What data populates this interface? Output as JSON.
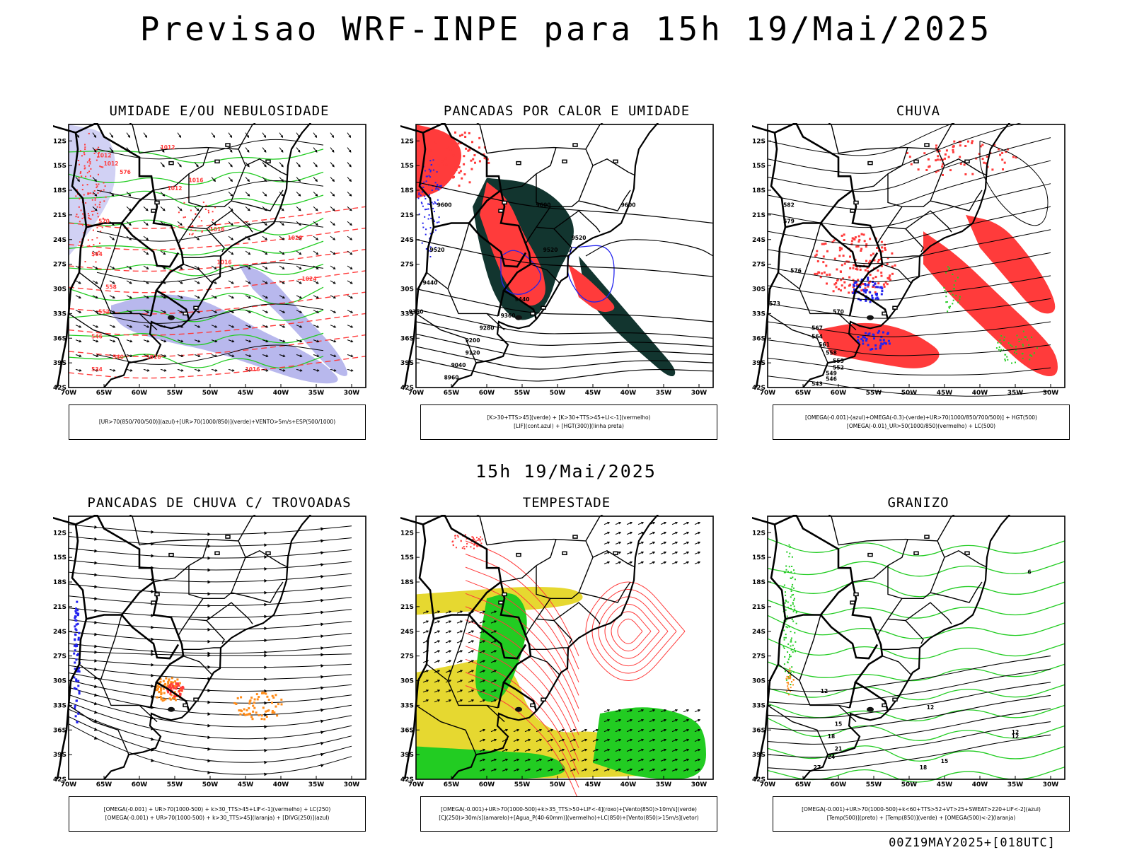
{
  "title": "Previsao WRF-INPE  para 15h 19/Mai/2025",
  "mid_date": "15h 19/Mai/2025",
  "footer_stamp": "00Z19MAY2025+[018UTC]",
  "lat_labels": [
    "12S",
    "15S",
    "18S",
    "21S",
    "24S",
    "27S",
    "30S",
    "33S",
    "36S",
    "39S",
    "42S"
  ],
  "lon_labels": [
    "70W",
    "65W",
    "60W",
    "55W",
    "50W",
    "45W",
    "40W",
    "35W",
    "30W"
  ],
  "colors": {
    "blue": "#2222ee",
    "green": "#22cc22",
    "red": "#ff3b3b",
    "orange": "#ff8c1a",
    "yellow": "#e6d830",
    "dark": "#12352f",
    "lavender": "#9a9ae6",
    "black": "#000000"
  },
  "panels": [
    {
      "id": "umidade",
      "title": "UMIDADE E/OU NEBULOSIDADE",
      "legend": [
        "[UR>70(850/700/500)](azul)+[UR>70(1000/850)](verde)+VENTO>5m/s+ESP(500/1000)"
      ],
      "labels": [
        "1012",
        "1012",
        "1016",
        "1016",
        "1016",
        "1020",
        "1024",
        "1016",
        "1016",
        "1012",
        "1012",
        "576",
        "570",
        "564",
        "558",
        "552",
        "546",
        "540",
        "534"
      ]
    },
    {
      "id": "pancadas",
      "title": "PANCADAS POR CALOR E UMIDADE",
      "legend": [
        "[K>30+TTS>45](verde) + [K>30+TTS>45+LI<-1](vermelho)",
        "[LIF](cont.azul) + [HGT(300)](linha preta)"
      ],
      "labels": [
        "9600",
        "9600",
        "9600",
        "9520",
        "9520",
        "9520",
        "9440",
        "9440",
        "9360",
        "9360",
        "9280",
        "9200",
        "9120",
        "9040",
        "8960"
      ]
    },
    {
      "id": "chuva",
      "title": "CHUVA",
      "legend": [
        "[OMEGA(-0.001)-(azul)+OMEGA(-0.3)-(verde)+UR>70(1000/850/700/500)] + HGT(500)",
        "[OMEGA(-0.01)_UR>50(1000/850)(vermelho) + LC(500)"
      ],
      "labels": [
        "582",
        "579",
        "576",
        "573",
        "570",
        "567",
        "564",
        "561",
        "558",
        "555",
        "552",
        "549",
        "546",
        "543"
      ]
    },
    {
      "id": "trovoadas",
      "title": "PANCADAS DE CHUVA C/ TROVOADAS",
      "legend": [
        "[OMEGA(-0.001) + UR>70(1000-500) + k>30_TTS>45+LIF<-1](vermelho) + LC(250)",
        "[OMEGA(-0.001) + UR>70(1000-500) + k>30_TTS>45](laranja) + [DIVG(250)](azul)"
      ],
      "labels": []
    },
    {
      "id": "tempestade",
      "title": "TEMPESTADE",
      "legend": [
        "[OMEGA(-0.001)+UR>70(1000-500)+k>35_TTS>50+LIF<-4](roxo)+[Vento(850)>10m/s](verde)",
        "[CJ(250)>30m/s](amarelo)+[Agua_P(40-60mm)](vermelho)+LC(850)+[Vento(850)>15m/s](vetor)"
      ],
      "labels": []
    },
    {
      "id": "granizo",
      "title": "GRANIZO",
      "legend": [
        "[OMEGA(-0.001)+UR>70(1000-500)+k<60+TTS>52+VT>25+SWEAT>220+LIF<-2](azul)",
        "[Temp(500)](preto) + [Temp(850)](verde) + [OMEGA(500)<-2](laranja)"
      ],
      "labels": [
        "12",
        "12",
        "12",
        "15",
        "18",
        "21",
        "24",
        "27",
        "18",
        "15",
        "12",
        "6"
      ]
    }
  ]
}
